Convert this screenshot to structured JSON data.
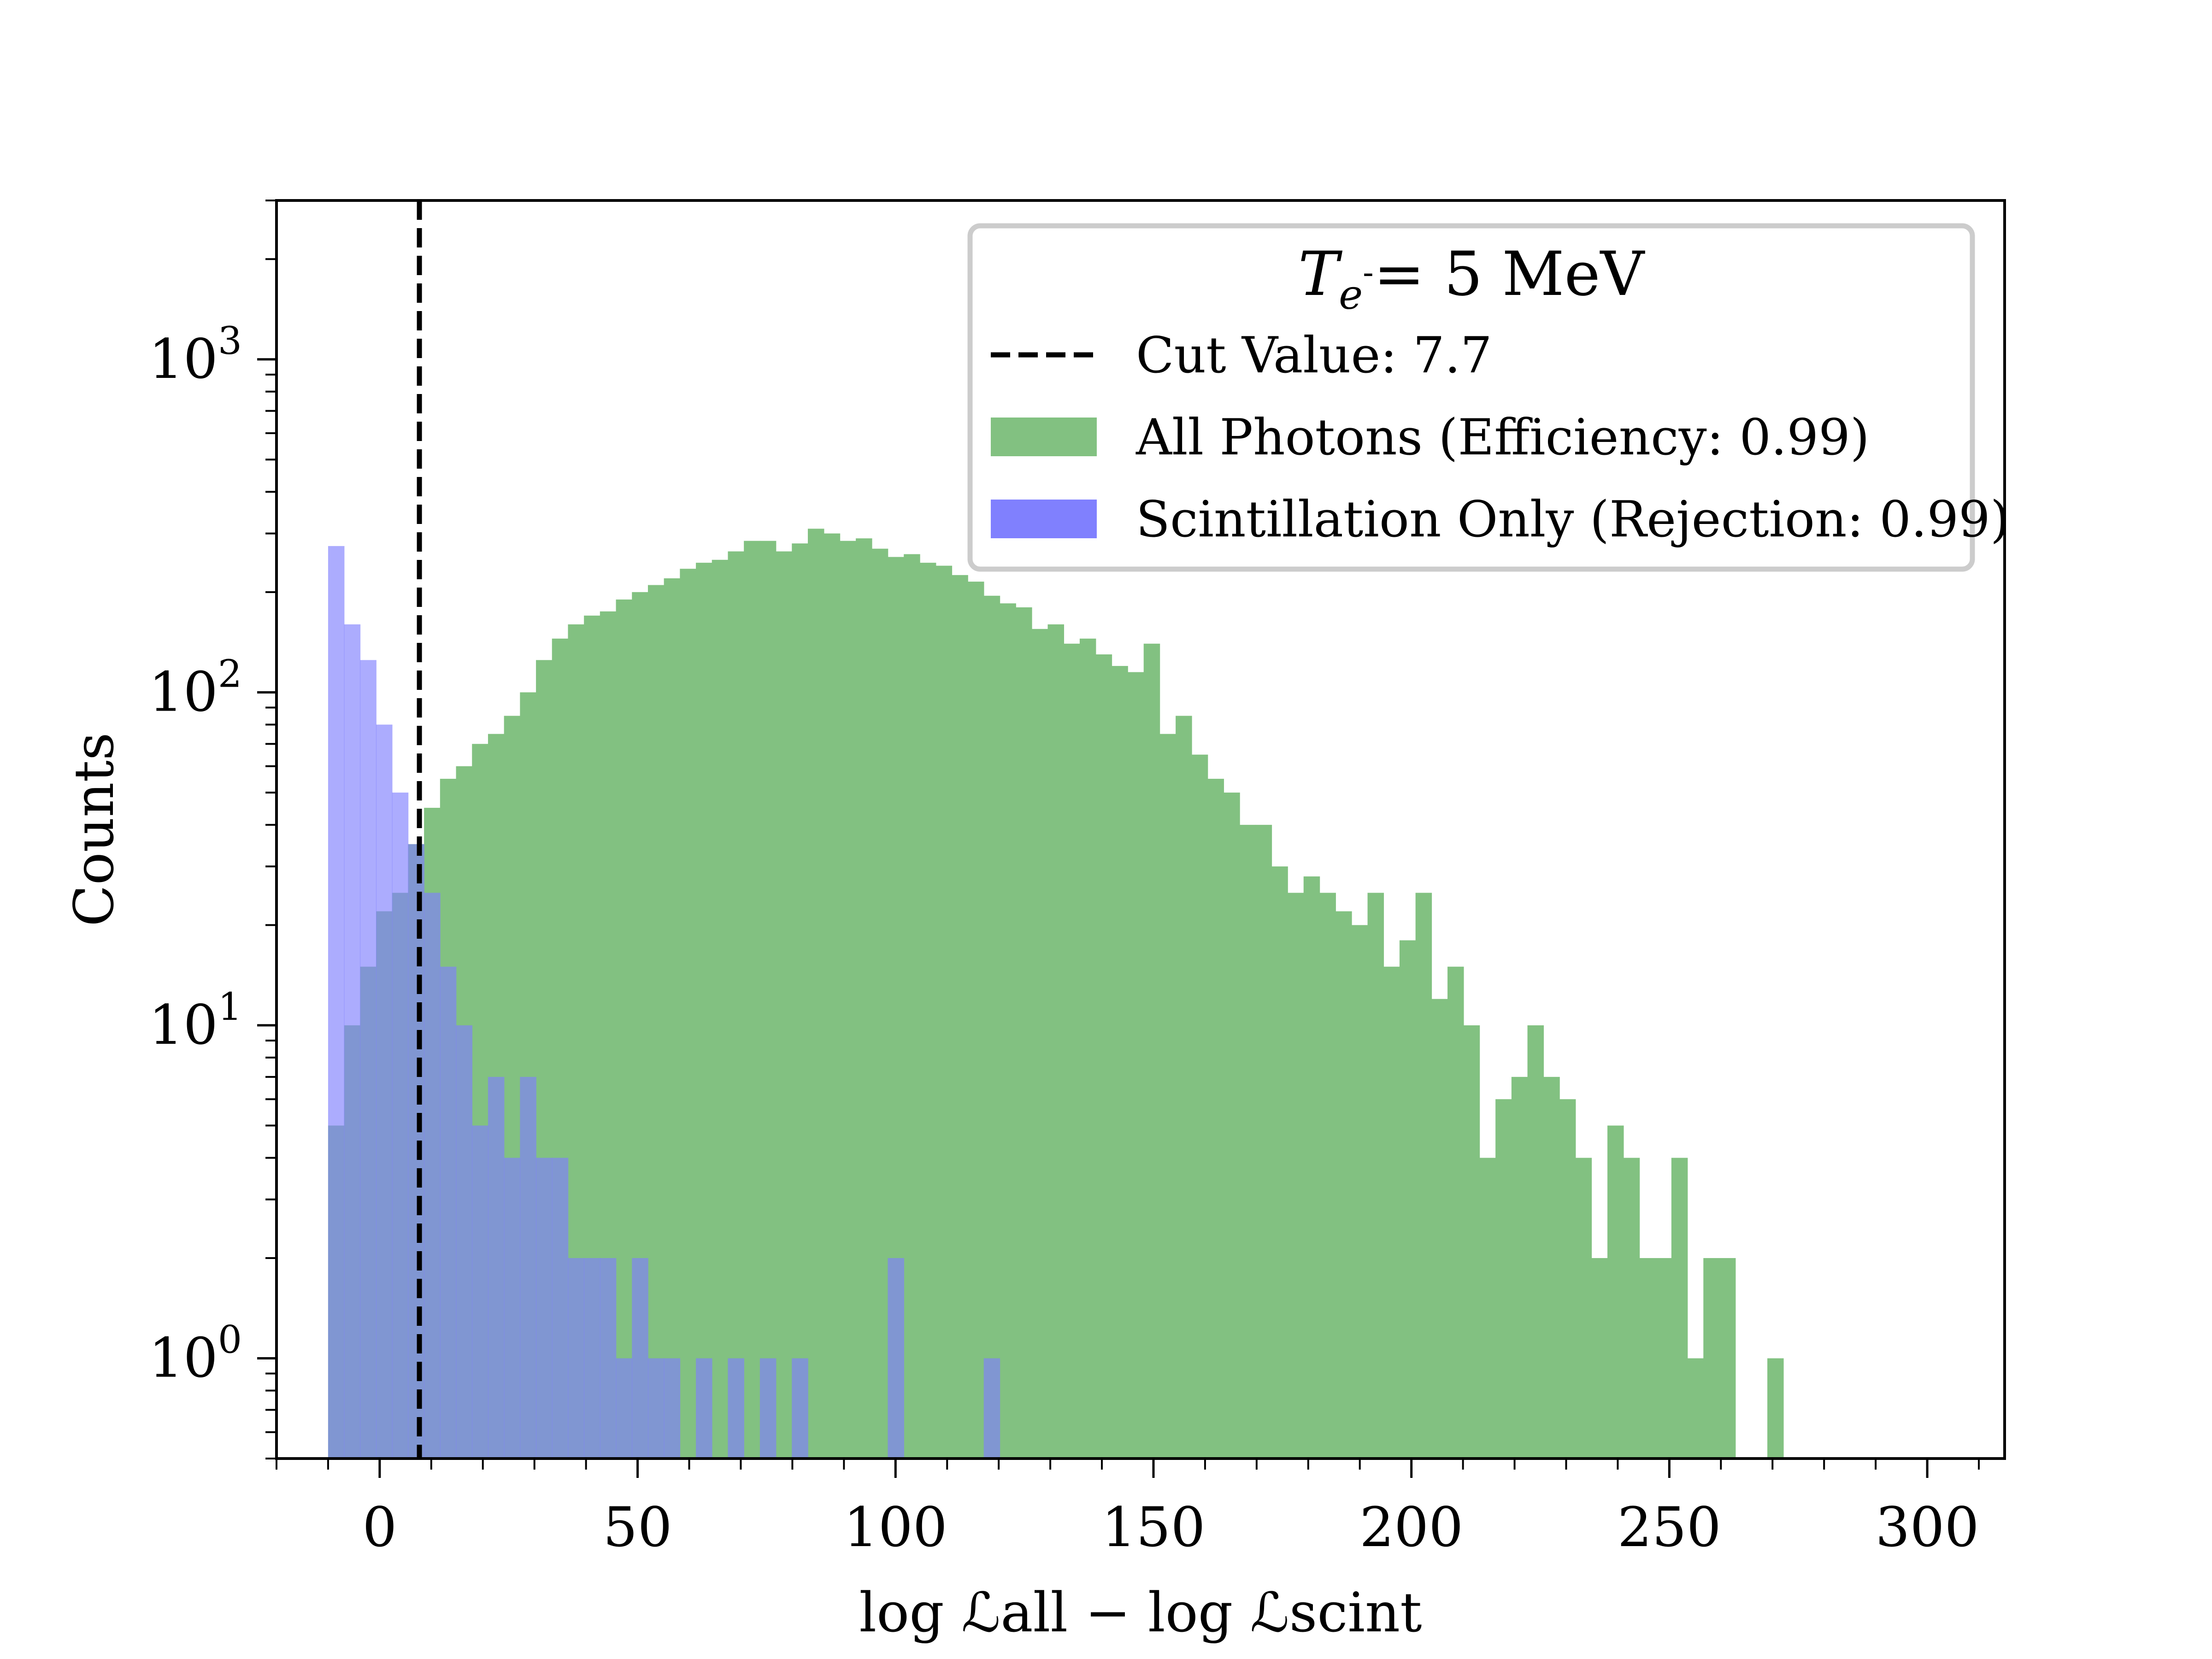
{
  "chart_data": {
    "type": "bar",
    "subtype": "histogram",
    "xlabel": "log ℒall − log ℒscint",
    "ylabel": "Counts",
    "yscale": "log",
    "xlim": [
      -20,
      315
    ],
    "ylim": [
      0.5,
      3000
    ],
    "x_ticks": [
      0,
      50,
      100,
      150,
      200,
      250,
      300
    ],
    "y_ticks": [
      {
        "value": 1,
        "label": "10",
        "exp": "0"
      },
      {
        "value": 10,
        "label": "10",
        "exp": "1"
      },
      {
        "value": 100,
        "label": "10",
        "exp": "2"
      },
      {
        "value": 1000,
        "label": "10",
        "exp": "3"
      }
    ],
    "grid": false,
    "bin_width": 3.1,
    "legend": {
      "position": "upper right",
      "title_main": "T",
      "title_sub": "e",
      "title_sup": "-",
      "title_rest": "= 5 MeV",
      "entries": [
        {
          "label": "Cut Value: 7.7",
          "kind": "line",
          "color": "#000000"
        },
        {
          "label": "All Photons (Efficiency: 0.99)",
          "kind": "patch",
          "color": "#82c181"
        },
        {
          "label": "Scintillation Only (Rejection: 0.99)",
          "kind": "patch",
          "color": "#8080fe"
        }
      ]
    },
    "cut_value": 7.7,
    "series": [
      {
        "name": "All Photons (Efficiency: 0.99)",
        "color": "#82c181",
        "bin_start": -10,
        "counts": [
          5,
          10,
          15,
          22,
          25,
          35,
          45,
          55,
          60,
          70,
          75,
          85,
          100,
          125,
          145,
          160,
          170,
          175,
          190,
          200,
          210,
          220,
          235,
          245,
          250,
          265,
          285,
          285,
          265,
          280,
          310,
          300,
          285,
          290,
          270,
          255,
          260,
          245,
          240,
          225,
          215,
          195,
          185,
          180,
          155,
          160,
          140,
          145,
          130,
          120,
          115,
          140,
          75,
          85,
          65,
          55,
          50,
          40,
          40,
          30,
          25,
          28,
          25,
          22,
          20,
          25,
          15,
          18,
          25,
          12,
          15,
          10,
          4,
          6,
          7,
          10,
          7,
          6,
          4,
          2,
          5,
          4,
          2,
          2,
          4,
          1,
          2,
          2,
          0,
          0,
          1
        ]
      },
      {
        "name": "Scintillation Only (Rejection: 0.99)",
        "color": "#8080fe",
        "bin_start": -10,
        "counts": [
          275,
          160,
          125,
          80,
          50,
          35,
          25,
          15,
          10,
          5,
          7,
          4,
          7,
          4,
          4,
          2,
          2,
          2,
          1,
          2,
          1,
          1,
          0,
          1,
          0,
          1,
          0,
          1,
          0,
          1,
          0,
          0,
          0,
          0,
          0,
          2,
          0,
          0,
          0,
          0,
          0,
          1
        ]
      }
    ]
  }
}
